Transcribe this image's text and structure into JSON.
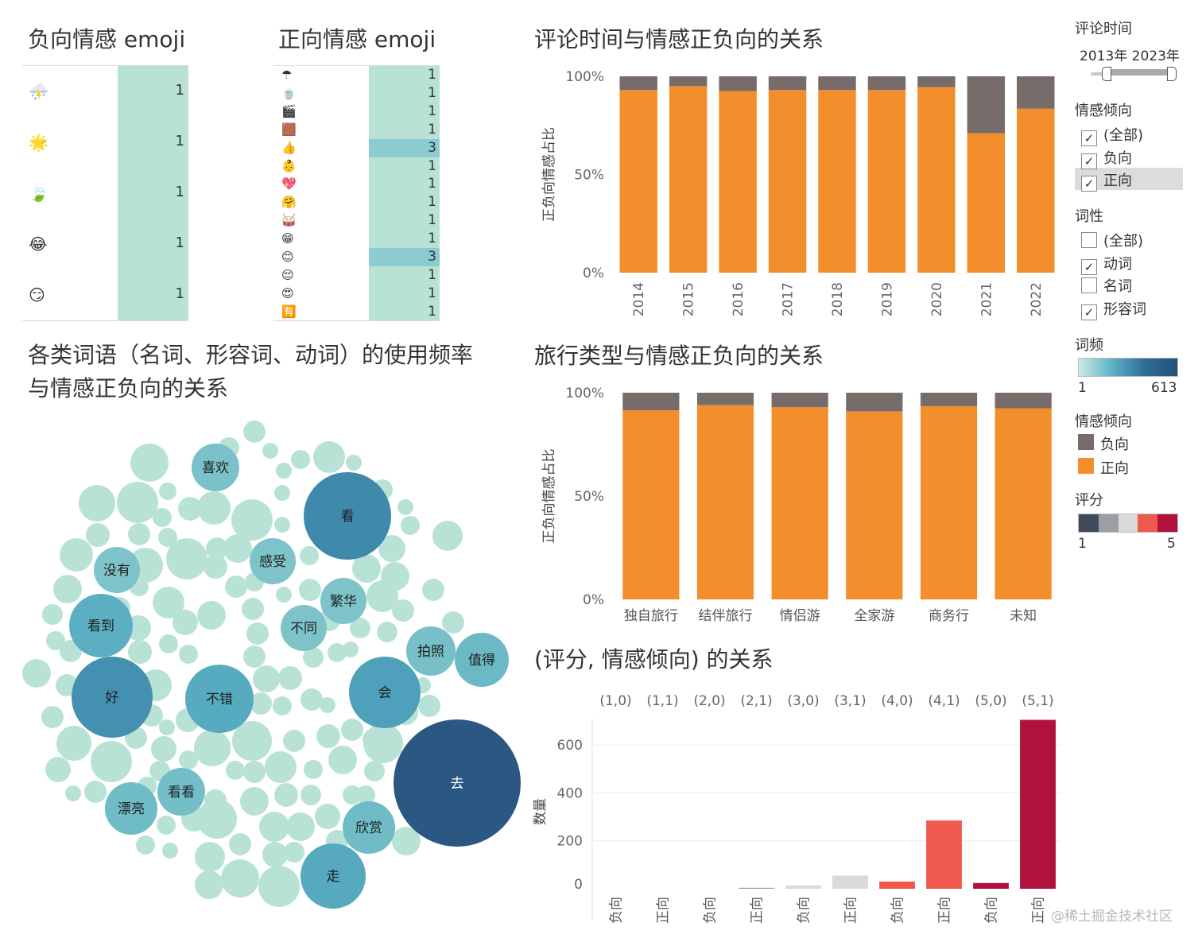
{
  "neg_emoji": {
    "title": "负向情感 emoji",
    "rows": [
      {
        "icon": "⛈️",
        "value": "1"
      },
      {
        "icon": "🌟",
        "value": "1"
      },
      {
        "icon": "🍃",
        "value": "1"
      },
      {
        "icon": "😂",
        "value": "1"
      },
      {
        "icon": "😏",
        "value": "1"
      }
    ]
  },
  "pos_emoji": {
    "title": "正向情感 emoji",
    "rows": [
      {
        "icon": "☂",
        "value": "1",
        "hl": false
      },
      {
        "icon": "🍵",
        "value": "1",
        "hl": false
      },
      {
        "icon": "🎬",
        "value": "1",
        "hl": false
      },
      {
        "icon": "🟫",
        "value": "1",
        "hl": false
      },
      {
        "icon": "👍",
        "value": "3",
        "hl": true
      },
      {
        "icon": "👶",
        "value": "1",
        "hl": false
      },
      {
        "icon": "💖",
        "value": "1",
        "hl": false
      },
      {
        "icon": "🤗",
        "value": "1",
        "hl": false
      },
      {
        "icon": "🥁",
        "value": "1",
        "hl": false
      },
      {
        "icon": "😁",
        "value": "1",
        "hl": false
      },
      {
        "icon": "😊",
        "value": "3",
        "hl": true
      },
      {
        "icon": "😌",
        "value": "1",
        "hl": false
      },
      {
        "icon": "😍",
        "value": "1",
        "hl": false
      },
      {
        "icon": "🈶",
        "value": "1",
        "hl": false
      }
    ]
  },
  "bubble": {
    "title_line1": "各类词语（名词、形容词、动词）的使用频率",
    "title_line2": "与情感正负向的关系"
  },
  "sidebar": {
    "time_label": "评论时间",
    "time_range_start": "2013年",
    "time_range_end": "2023年",
    "sentiment_label": "情感倾向",
    "sentiment_opts": [
      {
        "label": "(全部)",
        "checked": true
      },
      {
        "label": "负向",
        "checked": true
      },
      {
        "label": "正向",
        "checked": true
      }
    ],
    "pos_label": "词性",
    "pos_opts": [
      {
        "label": "(全部)",
        "checked": false
      },
      {
        "label": "动词",
        "checked": true
      },
      {
        "label": "名词",
        "checked": false
      },
      {
        "label": "形容词",
        "checked": true
      }
    ],
    "freq_label": "词频",
    "freq_min": "1",
    "freq_max": "613",
    "legend_label": "情感倾向",
    "legend_neg": "负向",
    "legend_pos": "正向",
    "score_label": "评分",
    "score_min": "1",
    "score_max": "5",
    "score_colors": [
      "#3f4a5a",
      "#9a9fa3",
      "#dadada",
      "#ef5a4f",
      "#b0123b"
    ]
  },
  "colors": {
    "neg": "#776c6a",
    "pos": "#f28e2b",
    "mint": "#b9e2d7",
    "mint_hl": "#8ccbcf"
  },
  "watermark": "@稀土掘金技术社区",
  "chart_data": [
    {
      "id": "time",
      "type": "bar",
      "stacked": true,
      "title": "评论时间与情感正负向的关系",
      "ylabel": "正负向情感占比",
      "ylim": [
        0,
        100
      ],
      "ticks": [
        "0%",
        "50%",
        "100%"
      ],
      "categories": [
        "2014",
        "2015",
        "2016",
        "2017",
        "2018",
        "2019",
        "2020",
        "2021",
        "2022"
      ],
      "series": [
        {
          "name": "正向",
          "values": [
            93,
            95,
            92.5,
            93,
            93,
            93,
            94.5,
            71,
            83.5
          ]
        },
        {
          "name": "负向",
          "values": [
            7,
            5,
            7.5,
            7,
            7,
            7,
            5.5,
            29,
            16.5
          ]
        }
      ]
    },
    {
      "id": "travel",
      "type": "bar",
      "stacked": true,
      "title": "旅行类型与情感正负向的关系",
      "ylabel": "正负向情感占比",
      "ylim": [
        0,
        100
      ],
      "ticks": [
        "0%",
        "50%",
        "100%"
      ],
      "categories": [
        "独自旅行",
        "结伴旅行",
        "情侣游",
        "全家游",
        "商务行",
        "未知"
      ],
      "series": [
        {
          "name": "正向",
          "values": [
            91.5,
            94,
            93,
            91,
            93.5,
            92.5
          ]
        },
        {
          "name": "负向",
          "values": [
            8.5,
            6,
            7,
            9,
            6.5,
            7.5
          ]
        }
      ]
    },
    {
      "id": "score",
      "type": "bar",
      "title": "(评分, 情感倾向) 的关系",
      "ylabel": "数量",
      "ylim": [
        0,
        710
      ],
      "ticks": [
        "0",
        "200",
        "400",
        "600"
      ],
      "groups": [
        "(1,0)",
        "(1,1)",
        "(2,0)",
        "(2,1)",
        "(3,0)",
        "(3,1)",
        "(4,0)",
        "(4,1)",
        "(5,0)",
        "(5,1)"
      ],
      "categories": [
        "负向",
        "正向",
        "负向",
        "正向",
        "负向",
        "正向",
        "负向",
        "正向",
        "负向",
        "正向"
      ],
      "values": [
        0,
        0,
        0,
        4,
        14,
        55,
        30,
        285,
        24,
        705
      ],
      "scores": [
        1,
        1,
        2,
        2,
        3,
        3,
        4,
        4,
        5,
        5
      ]
    },
    {
      "id": "words",
      "type": "bubble",
      "title": "各类词语（名词、形容词、动词）的使用频率与情感正负向的关系",
      "labeled": [
        {
          "word": "去",
          "freq": 613
        },
        {
          "word": "看",
          "freq": 260
        },
        {
          "word": "好",
          "freq": 230
        },
        {
          "word": "会",
          "freq": 170
        },
        {
          "word": "走",
          "freq": 140
        },
        {
          "word": "不错",
          "freq": 135
        },
        {
          "word": "看到",
          "freq": 120
        },
        {
          "word": "值得",
          "freq": 85
        },
        {
          "word": "欣赏",
          "freq": 80
        },
        {
          "word": "漂亮",
          "freq": 80
        },
        {
          "word": "看看",
          "freq": 70
        },
        {
          "word": "拍照",
          "freq": 65
        },
        {
          "word": "喜欢",
          "freq": 60
        },
        {
          "word": "不同",
          "freq": 55
        },
        {
          "word": "繁华",
          "freq": 55
        },
        {
          "word": "没有",
          "freq": 55
        },
        {
          "word": "感受",
          "freq": 55
        }
      ]
    }
  ]
}
